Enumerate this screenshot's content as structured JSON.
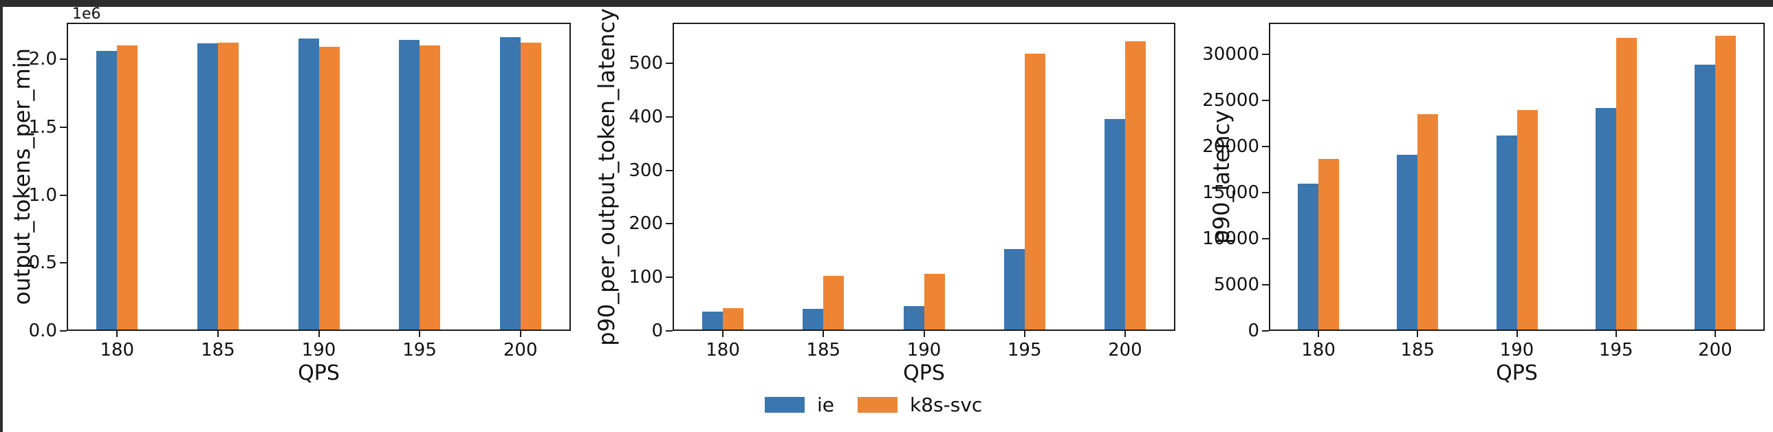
{
  "window": {
    "background": "#ffffff",
    "edge_color": "#2e2e2e"
  },
  "colors": {
    "ie": "#3b76af",
    "k8s_svc": "#ee8535",
    "spine": "#1c1c1c",
    "text": "#111111"
  },
  "legend": {
    "items": [
      {
        "label": "ie",
        "color": "#3b76af"
      },
      {
        "label": "k8s-svc",
        "color": "#ee8535"
      }
    ]
  },
  "chart_data": [
    {
      "type": "bar",
      "title": "",
      "ylabel": "output_tokens_per_min",
      "xlabel": "QPS",
      "offset_text": "1e6",
      "categories": [
        "180",
        "185",
        "190",
        "195",
        "200"
      ],
      "series": [
        {
          "name": "ie",
          "color": "#3b76af",
          "values": [
            2050000,
            2110000,
            2145000,
            2135000,
            2155000
          ]
        },
        {
          "name": "k8s-svc",
          "color": "#ee8535",
          "values": [
            2095000,
            2115000,
            2080000,
            2095000,
            2115000
          ]
        }
      ],
      "ylim": [
        0,
        2270000
      ],
      "ytick_values": [
        0,
        500000,
        1000000,
        1500000,
        2000000
      ],
      "ytick_labels": [
        "0.0",
        "0.5",
        "1.0",
        "1.5",
        "2.0"
      ],
      "grid": false,
      "legend_position": "none"
    },
    {
      "type": "bar",
      "title": "",
      "ylabel": "p90_per_output_token_latency",
      "xlabel": "QPS",
      "offset_text": "",
      "categories": [
        "180",
        "185",
        "190",
        "195",
        "200"
      ],
      "series": [
        {
          "name": "ie",
          "color": "#3b76af",
          "values": [
            33,
            38,
            44,
            150,
            393
          ]
        },
        {
          "name": "k8s-svc",
          "color": "#ee8535",
          "values": [
            40,
            100,
            104,
            516,
            539
          ]
        }
      ],
      "ylim": [
        0,
        576
      ],
      "ytick_values": [
        0,
        100,
        200,
        300,
        400,
        500
      ],
      "ytick_labels": [
        "0",
        "100",
        "200",
        "300",
        "400",
        "500"
      ],
      "grid": false,
      "legend_position": "below"
    },
    {
      "type": "bar",
      "title": "",
      "ylabel": "p90_latency",
      "xlabel": "QPS",
      "offset_text": "",
      "categories": [
        "180",
        "185",
        "190",
        "195",
        "200"
      ],
      "series": [
        {
          "name": "ie",
          "color": "#3b76af",
          "values": [
            15800,
            18900,
            21000,
            24000,
            28700
          ]
        },
        {
          "name": "k8s-svc",
          "color": "#ee8535",
          "values": [
            18500,
            23300,
            23800,
            31600,
            31800
          ]
        }
      ],
      "ylim": [
        0,
        33400
      ],
      "ytick_values": [
        0,
        5000,
        10000,
        15000,
        20000,
        25000,
        30000
      ],
      "ytick_labels": [
        "0",
        "5000",
        "10000",
        "15000",
        "20000",
        "25000",
        "30000"
      ],
      "grid": false,
      "legend_position": "none"
    }
  ]
}
